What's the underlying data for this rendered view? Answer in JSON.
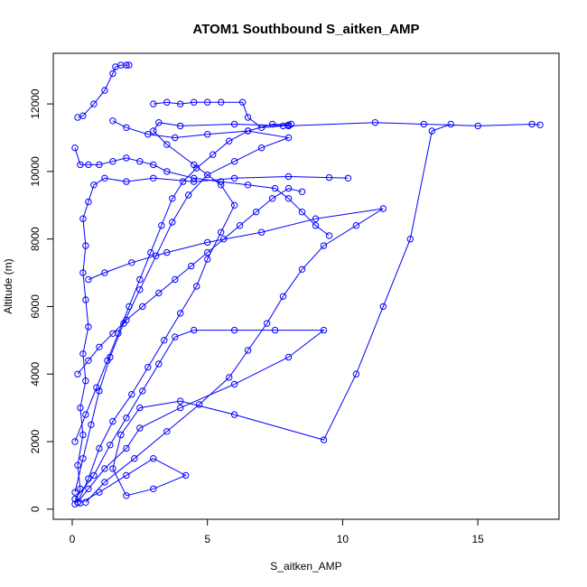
{
  "chart_data": {
    "type": "line",
    "title": "ATOM1 Southbound S_aitken_AMP",
    "xlabel": "S_aitken_AMP",
    "ylabel": "Altitude (m)",
    "xlim": [
      -0.7,
      18.0
    ],
    "ylim": [
      -300,
      13500
    ],
    "x_ticks": [
      0,
      5,
      10,
      15
    ],
    "y_ticks": [
      0,
      2000,
      4000,
      6000,
      8000,
      10000,
      12000
    ],
    "x_tick_labels": [
      "0",
      "5",
      "10",
      "15"
    ],
    "y_tick_labels": [
      "0",
      "2000",
      "4000",
      "6000",
      "8000",
      "10000",
      "12000"
    ],
    "grid": false,
    "legend": "none",
    "marker": "open-circle",
    "series_color": "#0000ff",
    "series": [
      {
        "values": [
          [
            0.1,
            150
          ],
          [
            0.3,
            600
          ],
          [
            0.2,
            1300
          ],
          [
            0.4,
            2200
          ],
          [
            0.3,
            3000
          ],
          [
            0.5,
            3800
          ],
          [
            0.4,
            4600
          ],
          [
            0.6,
            5400
          ],
          [
            0.5,
            6200
          ],
          [
            0.4,
            7000
          ],
          [
            0.5,
            7800
          ],
          [
            0.4,
            8600
          ],
          [
            0.6,
            9100
          ],
          [
            0.8,
            9600
          ],
          [
            1.2,
            9800
          ],
          [
            2.0,
            9700
          ],
          [
            3.0,
            9800
          ],
          [
            4.5,
            9700
          ],
          [
            6.0,
            9800
          ],
          [
            8.0,
            9850
          ],
          [
            9.5,
            9820
          ],
          [
            10.2,
            9800
          ]
        ]
      },
      {
        "values": [
          [
            0.2,
            200
          ],
          [
            0.6,
            900
          ],
          [
            1.0,
            1800
          ],
          [
            1.5,
            2600
          ],
          [
            2.2,
            3400
          ],
          [
            2.8,
            4200
          ],
          [
            3.4,
            5000
          ],
          [
            4.0,
            5800
          ],
          [
            4.6,
            6600
          ],
          [
            5.0,
            7400
          ],
          [
            5.5,
            8200
          ],
          [
            6.0,
            9000
          ],
          [
            5.5,
            9600
          ],
          [
            4.5,
            10200
          ],
          [
            3.5,
            10800
          ],
          [
            3.0,
            11200
          ],
          [
            3.2,
            11450
          ],
          [
            4.0,
            11350
          ],
          [
            6.0,
            11400
          ],
          [
            8.0,
            11350
          ],
          [
            11.2,
            11450
          ],
          [
            13.0,
            11400
          ],
          [
            15.0,
            11350
          ],
          [
            17.0,
            11400
          ],
          [
            17.3,
            11380
          ]
        ]
      },
      {
        "values": [
          [
            0.1,
            300
          ],
          [
            0.8,
            1000
          ],
          [
            1.4,
            1900
          ],
          [
            2.0,
            2700
          ],
          [
            2.6,
            3500
          ],
          [
            3.2,
            4300
          ],
          [
            3.8,
            5100
          ],
          [
            4.5,
            5300
          ],
          [
            6.0,
            5300
          ],
          [
            7.5,
            5300
          ],
          [
            9.3,
            5300
          ],
          [
            8.0,
            4500
          ],
          [
            6.0,
            3700
          ],
          [
            4.0,
            3000
          ],
          [
            2.5,
            2400
          ],
          [
            2.0,
            1800
          ],
          [
            1.2,
            1200
          ],
          [
            0.6,
            600
          ],
          [
            0.2,
            200
          ]
        ]
      },
      {
        "values": [
          [
            0.3,
            180
          ],
          [
            1.0,
            500
          ],
          [
            2.0,
            1000
          ],
          [
            3.0,
            1500
          ],
          [
            4.2,
            1000
          ],
          [
            3.0,
            600
          ],
          [
            2.0,
            400
          ],
          [
            1.5,
            1200
          ],
          [
            1.8,
            2200
          ],
          [
            2.5,
            3000
          ],
          [
            4.0,
            3200
          ],
          [
            6.0,
            2800
          ],
          [
            9.3,
            2050
          ],
          [
            10.5,
            4000
          ],
          [
            11.5,
            6000
          ],
          [
            12.5,
            8000
          ],
          [
            13.3,
            11200
          ],
          [
            14.0,
            11400
          ]
        ]
      },
      {
        "values": [
          [
            0.5,
            200
          ],
          [
            1.2,
            800
          ],
          [
            2.3,
            1500
          ],
          [
            3.5,
            2300
          ],
          [
            4.7,
            3100
          ],
          [
            5.8,
            3900
          ],
          [
            6.5,
            4700
          ],
          [
            7.2,
            5500
          ],
          [
            7.8,
            6300
          ],
          [
            8.5,
            7100
          ],
          [
            9.3,
            7800
          ],
          [
            10.5,
            8400
          ],
          [
            11.5,
            8900
          ],
          [
            9.0,
            8600
          ],
          [
            7.0,
            8200
          ],
          [
            5.0,
            7900
          ],
          [
            3.5,
            7600
          ],
          [
            2.2,
            7300
          ],
          [
            1.2,
            7000
          ],
          [
            0.6,
            6800
          ]
        ]
      },
      {
        "values": [
          [
            0.1,
            500
          ],
          [
            0.4,
            1500
          ],
          [
            0.7,
            2500
          ],
          [
            1.0,
            3500
          ],
          [
            1.4,
            4500
          ],
          [
            1.9,
            5500
          ],
          [
            2.5,
            6500
          ],
          [
            3.1,
            7500
          ],
          [
            3.7,
            8500
          ],
          [
            4.3,
            9300
          ],
          [
            5.0,
            9900
          ],
          [
            6.0,
            10300
          ],
          [
            7.0,
            10700
          ],
          [
            8.0,
            11000
          ],
          [
            6.5,
            11200
          ],
          [
            5.0,
            11100
          ],
          [
            3.8,
            11000
          ],
          [
            2.8,
            11100
          ],
          [
            2.0,
            11300
          ],
          [
            1.5,
            11500
          ]
        ]
      },
      {
        "values": [
          [
            0.2,
            11600
          ],
          [
            0.4,
            11650
          ],
          [
            0.8,
            12000
          ],
          [
            1.2,
            12400
          ],
          [
            1.5,
            12900
          ],
          [
            1.6,
            13100
          ],
          [
            1.8,
            13150
          ],
          [
            2.0,
            13150
          ],
          [
            2.1,
            13150
          ]
        ]
      },
      {
        "values": [
          [
            0.1,
            10700
          ],
          [
            0.3,
            10200
          ],
          [
            0.6,
            10200
          ],
          [
            1.0,
            10200
          ],
          [
            1.5,
            10300
          ],
          [
            2.0,
            10400
          ],
          [
            2.5,
            10300
          ],
          [
            3.0,
            10200
          ],
          [
            3.5,
            10000
          ],
          [
            4.5,
            9800
          ],
          [
            5.5,
            9700
          ],
          [
            6.5,
            9600
          ],
          [
            7.5,
            9500
          ],
          [
            8.0,
            9200
          ],
          [
            8.5,
            8800
          ],
          [
            9.0,
            8400
          ],
          [
            9.5,
            8100
          ]
        ]
      },
      {
        "values": [
          [
            3.0,
            12000
          ],
          [
            3.5,
            12050
          ],
          [
            4.0,
            12000
          ],
          [
            4.5,
            12050
          ],
          [
            5.0,
            12050
          ],
          [
            5.5,
            12050
          ],
          [
            6.3,
            12050
          ],
          [
            6.5,
            11600
          ],
          [
            7.0,
            11300
          ],
          [
            7.8,
            11350
          ],
          [
            8.1,
            11400
          ]
        ]
      },
      {
        "values": [
          [
            0.2,
            4000
          ],
          [
            0.6,
            4400
          ],
          [
            1.0,
            4800
          ],
          [
            1.5,
            5200
          ],
          [
            2.0,
            5600
          ],
          [
            2.6,
            6000
          ],
          [
            3.2,
            6400
          ],
          [
            3.8,
            6800
          ],
          [
            4.4,
            7200
          ],
          [
            5.0,
            7600
          ],
          [
            5.6,
            8000
          ],
          [
            6.2,
            8400
          ],
          [
            6.8,
            8800
          ],
          [
            7.4,
            9200
          ],
          [
            8.0,
            9500
          ],
          [
            8.5,
            9400
          ]
        ]
      },
      {
        "values": [
          [
            0.1,
            2000
          ],
          [
            0.5,
            2800
          ],
          [
            0.9,
            3600
          ],
          [
            1.3,
            4400
          ],
          [
            1.7,
            5200
          ],
          [
            2.1,
            6000
          ],
          [
            2.5,
            6800
          ],
          [
            2.9,
            7600
          ],
          [
            3.3,
            8400
          ],
          [
            3.7,
            9200
          ],
          [
            4.1,
            9700
          ],
          [
            4.6,
            10100
          ],
          [
            5.2,
            10500
          ],
          [
            5.8,
            10900
          ],
          [
            6.5,
            11200
          ],
          [
            7.4,
            11400
          ],
          [
            8.0,
            11380
          ]
        ]
      }
    ]
  }
}
